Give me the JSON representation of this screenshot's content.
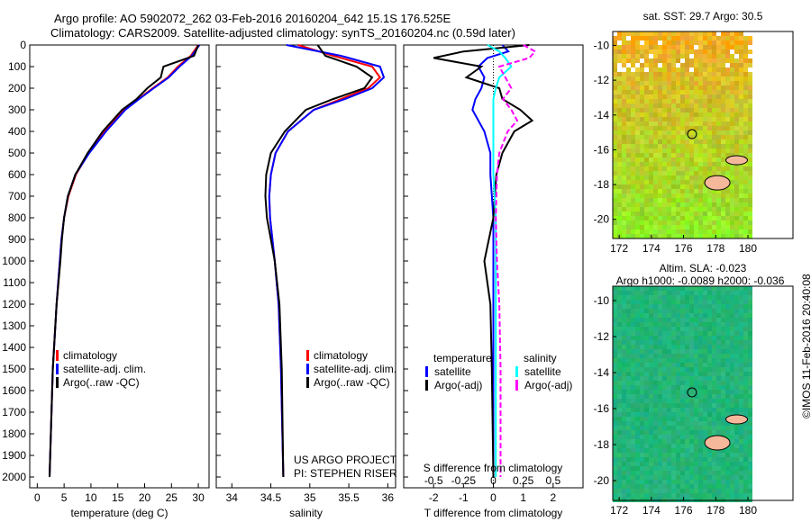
{
  "title_line1": "Argo profile: AO 5902072_262 03-Feb-2016 20160204_642 15.1S 176.525E",
  "title_line2": "Climatology: CARS2009. Satellite-adjusted climatology: synTS_20160204.nc (0.59d later)",
  "copyright": "©IMOS 11-Feb-2016 20:40:08",
  "colors": {
    "climatology": "#ff0000",
    "satellite": "#0000ff",
    "argo": "#000000",
    "sal_satellite": "#00ffff",
    "sal_argo": "#ff00ff"
  },
  "chart_data": [
    {
      "type": "line",
      "xlabel": "temperature (deg C)",
      "ylabel": "",
      "xlim": [
        -1.4,
        32
      ],
      "ylim": [
        2050,
        0
      ],
      "xticks": [
        "0",
        "5",
        "10",
        "15",
        "20",
        "25",
        "30"
      ],
      "yticks": [
        "0",
        "100",
        "200",
        "300",
        "400",
        "500",
        "600",
        "700",
        "800",
        "900",
        "1000",
        "1100",
        "1200",
        "1300",
        "1400",
        "1500",
        "1600",
        "1700",
        "1800",
        "1900",
        "2000"
      ],
      "legend": [
        "climatology",
        "satellite-adj. clim.",
        "Argo(..raw -QC)"
      ],
      "depth": [
        0,
        50,
        100,
        150,
        200,
        250,
        300,
        400,
        500,
        600,
        700,
        800,
        900,
        1000,
        1200,
        1500,
        2000
      ],
      "series": [
        {
          "name": "climatology",
          "values": [
            30,
            28.6,
            26.2,
            24.3,
            21.5,
            18.8,
            16.2,
            12.6,
            9.6,
            7.2,
            5.8,
            5.0,
            4.5,
            4.2,
            3.6,
            2.9,
            2.3
          ]
        },
        {
          "name": "satellite-adj. clim.",
          "values": [
            30.2,
            28.8,
            26.5,
            24.5,
            21.7,
            19.0,
            16.4,
            12.8,
            9.7,
            7.1,
            5.7,
            5.0,
            4.5,
            4.2,
            3.6,
            2.9,
            2.3
          ]
        },
        {
          "name": "Argo",
          "values": [
            30,
            29.2,
            23.5,
            23.0,
            20.5,
            18.5,
            15.8,
            12.2,
            9.4,
            7.1,
            5.7,
            5.0,
            4.6,
            4.3,
            3.6,
            2.9,
            2.3
          ]
        }
      ]
    },
    {
      "type": "line",
      "xlabel": "salinity",
      "xlim": [
        33.8,
        36.1
      ],
      "ylim": [
        2050,
        0
      ],
      "xticks": [
        "34",
        "34.5",
        "35",
        "35.5",
        "36"
      ],
      "legend": [
        "climatology",
        "satellite-adj. clim.",
        "Argo(..raw -QC)"
      ],
      "annotation": [
        "US ARGO PROJECT",
        "PI: STEPHEN RISER"
      ],
      "depth": [
        0,
        50,
        100,
        150,
        200,
        250,
        300,
        400,
        500,
        600,
        700,
        800,
        900,
        1000,
        1200,
        1500,
        2000
      ],
      "series": [
        {
          "name": "climatology",
          "values": [
            34.85,
            35.3,
            35.8,
            35.9,
            35.75,
            35.4,
            35.05,
            34.72,
            34.56,
            34.5,
            34.48,
            34.49,
            34.52,
            34.55,
            34.6,
            34.63,
            34.66
          ]
        },
        {
          "name": "satellite-adj. clim.",
          "values": [
            34.7,
            35.4,
            35.9,
            35.95,
            35.8,
            35.45,
            35.05,
            34.72,
            34.56,
            34.5,
            34.48,
            34.49,
            34.52,
            34.55,
            34.6,
            34.63,
            34.66
          ]
        },
        {
          "name": "Argo",
          "values": [
            35.1,
            35.2,
            35.6,
            35.8,
            35.7,
            35.3,
            34.95,
            34.68,
            34.5,
            34.44,
            34.43,
            34.45,
            34.5,
            34.55,
            34.61,
            34.64,
            34.66
          ]
        }
      ]
    },
    {
      "type": "line",
      "xlabel": "T difference from climatology",
      "x2label": "S difference from climatology",
      "xlim": [
        -3,
        3
      ],
      "x2lim": [
        -0.75,
        0.75
      ],
      "ylim": [
        2050,
        0
      ],
      "xticks": [
        "-2",
        "-1",
        "0",
        "1",
        "2"
      ],
      "x2ticks": [
        "-0.5",
        "-0.25",
        "0",
        "0.25",
        "0.5"
      ],
      "legend_title_t": "temperature",
      "legend_title_s": "salinity",
      "legend": [
        "satellite",
        "Argo(-adj)",
        "satellite",
        "Argo(-adj)"
      ],
      "depth": [
        0,
        30,
        60,
        100,
        150,
        200,
        250,
        300,
        350,
        400,
        500,
        600,
        800,
        1000,
        1200,
        1500,
        2000
      ],
      "series": [
        {
          "name": "T satellite",
          "values": [
            0.3,
            0.5,
            -0.2,
            -0.5,
            -0.3,
            -0.4,
            -0.6,
            -0.7,
            -0.5,
            -0.3,
            -0.1,
            -0.1,
            0,
            0,
            0,
            0,
            0
          ]
        },
        {
          "name": "T Argo(-adj)",
          "values": [
            1.2,
            -1.0,
            -2.0,
            -0.4,
            -0.9,
            0.2,
            0.3,
            0.9,
            1.3,
            0.7,
            0.3,
            0.1,
            0,
            -0.3,
            -0.1,
            -0.05,
            0
          ]
        },
        {
          "name": "S satellite",
          "values": [
            -0.05,
            0.05,
            0.1,
            0.15,
            0.05,
            0.02,
            0,
            0,
            0,
            0,
            0,
            0,
            0.02,
            0.02,
            0.02,
            0.02,
            0.02
          ]
        },
        {
          "name": "S Argo(-adj)",
          "values": [
            0.25,
            0.35,
            0.3,
            0.05,
            0.1,
            0.15,
            0.08,
            0.15,
            0.2,
            0.12,
            0.05,
            0.03,
            0.02,
            0.03,
            0.05,
            0.06,
            0.06
          ]
        }
      ]
    },
    {
      "type": "heatmap",
      "title": "sat. SST: 29.7  Argo: 30.5",
      "xticks": [
        "172",
        "174",
        "176",
        "178",
        "180"
      ],
      "yticks": [
        "-10",
        "-12",
        "-14",
        "-16",
        "-18",
        "-20"
      ],
      "xlim": [
        171.6,
        182.8
      ],
      "ylim": [
        -21.1,
        -9.2
      ],
      "marker": [
        176.525,
        -15.1
      ]
    },
    {
      "type": "heatmap",
      "title": "Altim. SLA: -0.023",
      "subtitle": "Argo h1000: -0.0089 h2000: -0.036",
      "xticks": [
        "172",
        "174",
        "176",
        "178",
        "180"
      ],
      "yticks": [
        "-10",
        "-12",
        "-14",
        "-16",
        "-18",
        "-20"
      ],
      "xlim": [
        171.6,
        182.8
      ],
      "ylim": [
        -21.1,
        -9.2
      ],
      "marker": [
        176.525,
        -15.1
      ]
    }
  ]
}
